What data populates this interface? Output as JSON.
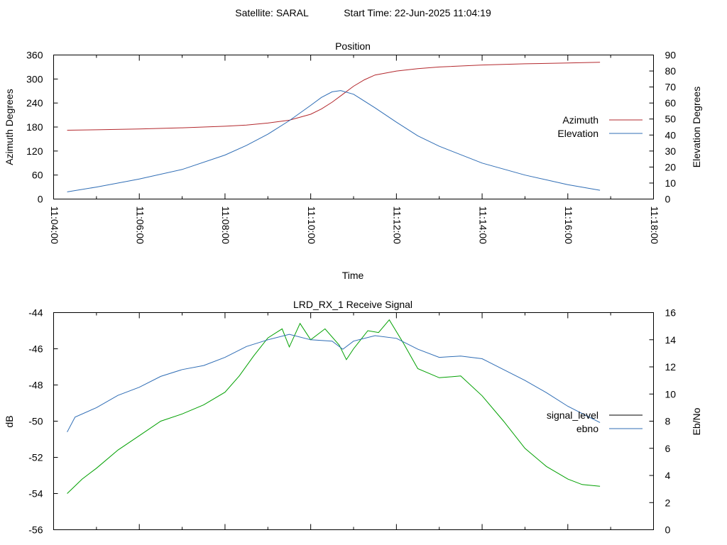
{
  "header": {
    "satellite_label": "Satellite: SARAL",
    "start_time_label": "Start Time: 22-Jun-2025 11:04:19"
  },
  "chart_data": [
    {
      "type": "line",
      "title": "Position",
      "xlabel": "Time",
      "ylabel": "Azimuth Degrees",
      "y2label": "Elevation Degrees",
      "xlim": [
        "11:04:00",
        "11:18:00"
      ],
      "ylim": [
        0,
        360
      ],
      "y2lim": [
        0,
        90
      ],
      "x_tick_labels": [
        "11:04:00",
        "11:06:00",
        "11:08:00",
        "11:10:00",
        "11:12:00",
        "11:14:00",
        "11:16:00",
        "11:18:00"
      ],
      "y_tick_labels": [
        "0",
        "60",
        "120",
        "180",
        "240",
        "300",
        "360"
      ],
      "y2_tick_labels": [
        "0",
        "10",
        "20",
        "30",
        "40",
        "50",
        "60",
        "70",
        "80",
        "90"
      ],
      "legend_position": "right",
      "grid": false,
      "series": [
        {
          "name": "Azimuth",
          "axis": "left",
          "color": "#b3282d",
          "x": [
            "11:04:19",
            "11:05:00",
            "11:06:00",
            "11:07:00",
            "11:08:00",
            "11:08:30",
            "11:09:00",
            "11:09:30",
            "11:10:00",
            "11:10:15",
            "11:10:30",
            "11:10:45",
            "11:11:00",
            "11:11:15",
            "11:11:30",
            "11:12:00",
            "11:12:30",
            "11:13:00",
            "11:14:00",
            "11:15:00",
            "11:16:00",
            "11:16:45"
          ],
          "values": [
            172,
            173,
            175,
            178,
            182,
            185,
            190,
            197,
            212,
            225,
            242,
            262,
            282,
            298,
            310,
            320,
            326,
            330,
            335,
            338,
            340,
            342
          ]
        },
        {
          "name": "Elevation",
          "axis": "right",
          "color": "#2f6db5",
          "x": [
            "11:04:19",
            "11:05:00",
            "11:06:00",
            "11:07:00",
            "11:08:00",
            "11:08:30",
            "11:09:00",
            "11:09:30",
            "11:10:00",
            "11:10:15",
            "11:10:30",
            "11:10:42",
            "11:11:00",
            "11:11:30",
            "11:12:00",
            "11:12:30",
            "11:13:00",
            "11:14:00",
            "11:15:00",
            "11:16:00",
            "11:16:45"
          ],
          "values": [
            4.5,
            7.5,
            12.5,
            18.5,
            27.5,
            33.5,
            40.5,
            49.0,
            58.5,
            63.5,
            67.0,
            67.8,
            65.5,
            57.0,
            48.0,
            39.5,
            33.0,
            22.5,
            15.0,
            9.0,
            5.5
          ]
        }
      ]
    },
    {
      "type": "line",
      "title": "LRD_RX_1 Receive Signal",
      "ylabel": "dB",
      "y2label": "Eb/No",
      "ylim": [
        -56,
        -44
      ],
      "y2lim": [
        0,
        16
      ],
      "y_tick_labels": [
        "-44",
        "-46",
        "-48",
        "-50",
        "-52",
        "-54",
        "-56"
      ],
      "y2_tick_labels": [
        "0",
        "2",
        "4",
        "6",
        "8",
        "10",
        "12",
        "14",
        "16"
      ],
      "legend_position": "right",
      "grid": false,
      "series": [
        {
          "name": "signal_level",
          "axis": "left",
          "color": "#00a000",
          "legend_color": "#000000",
          "x": [
            "11:04:19",
            "11:04:40",
            "11:05:00",
            "11:05:30",
            "11:06:00",
            "11:06:30",
            "11:07:00",
            "11:07:30",
            "11:08:00",
            "11:08:20",
            "11:08:40",
            "11:09:00",
            "11:09:20",
            "11:09:30",
            "11:09:45",
            "11:10:00",
            "11:10:20",
            "11:10:40",
            "11:10:50",
            "11:11:00",
            "11:11:20",
            "11:11:35",
            "11:11:50",
            "11:12:10",
            "11:12:30",
            "11:13:00",
            "11:13:30",
            "11:14:00",
            "11:14:30",
            "11:15:00",
            "11:15:30",
            "11:16:00",
            "11:16:20",
            "11:16:45"
          ],
          "values": [
            -54.0,
            -53.2,
            -52.6,
            -51.6,
            -50.8,
            -50.0,
            -49.6,
            -49.1,
            -48.4,
            -47.5,
            -46.4,
            -45.4,
            -44.9,
            -45.9,
            -44.6,
            -45.5,
            -44.9,
            -45.8,
            -46.6,
            -46.0,
            -45.0,
            -45.1,
            -44.4,
            -45.7,
            -47.1,
            -47.6,
            -47.5,
            -48.6,
            -50.0,
            -51.5,
            -52.5,
            -53.2,
            -53.5,
            -53.6
          ]
        },
        {
          "name": "ebno",
          "axis": "right",
          "color": "#2f6db5",
          "x": [
            "11:04:19",
            "11:04:30",
            "11:05:00",
            "11:05:30",
            "11:06:00",
            "11:06:30",
            "11:07:00",
            "11:07:30",
            "11:08:00",
            "11:08:30",
            "11:09:00",
            "11:09:30",
            "11:10:00",
            "11:10:30",
            "11:10:45",
            "11:11:00",
            "11:11:30",
            "11:12:00",
            "11:12:30",
            "11:13:00",
            "11:13:30",
            "11:14:00",
            "11:14:30",
            "11:15:00",
            "11:15:30",
            "11:16:00",
            "11:16:30",
            "11:16:45"
          ],
          "values": [
            7.2,
            8.3,
            9.0,
            9.9,
            10.5,
            11.3,
            11.8,
            12.1,
            12.7,
            13.5,
            14.0,
            14.4,
            14.0,
            13.9,
            13.3,
            13.9,
            14.3,
            14.1,
            13.3,
            12.7,
            12.8,
            12.6,
            11.8,
            11.0,
            10.1,
            9.1,
            8.3,
            7.9
          ]
        }
      ]
    }
  ]
}
